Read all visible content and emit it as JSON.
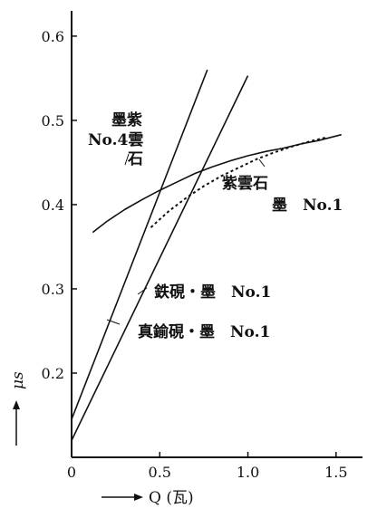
{
  "chart_data": {
    "type": "line",
    "title": "",
    "xlabel": "Q (瓦)",
    "ylabel": "μs",
    "xlim": [
      0,
      1.65
    ],
    "ylim": [
      0.1,
      0.63
    ],
    "grid": false,
    "x_ticks": [
      "0",
      "0.5",
      "1.0",
      "1.5"
    ],
    "y_ticks": [
      "0.2",
      "0.3",
      "0.4",
      "0.5",
      "0.6"
    ],
    "series": [
      {
        "style": "solid",
        "x": [
          0.0,
          0.77
        ],
        "y": [
          0.145,
          0.56
        ]
      },
      {
        "style": "solid",
        "x": [
          0.0,
          1.0
        ],
        "y": [
          0.12,
          0.553
        ]
      },
      {
        "style": "solid",
        "x": [
          0.12,
          0.2,
          0.3,
          0.4,
          0.5,
          0.6,
          0.7,
          0.8,
          0.9,
          1.0,
          1.1,
          1.2,
          1.3,
          1.4,
          1.53
        ],
        "y": [
          0.367,
          0.38,
          0.394,
          0.406,
          0.417,
          0.427,
          0.437,
          0.445,
          0.452,
          0.458,
          0.463,
          0.467,
          0.472,
          0.476,
          0.483
        ]
      },
      {
        "style": "dashed",
        "x": [
          0.45,
          0.55,
          0.65,
          0.75,
          0.85,
          0.95,
          1.05,
          1.15,
          1.25,
          1.35,
          1.45
        ],
        "y": [
          0.373,
          0.392,
          0.408,
          0.422,
          0.434,
          0.444,
          0.454,
          0.462,
          0.469,
          0.475,
          0.48
        ]
      }
    ],
    "annotations": [
      {
        "lines": [
          "墨紫",
          "No.4雲",
          "石"
        ]
      },
      {
        "lines": [
          "紫雲石"
        ]
      },
      {
        "lines": [
          "墨　No.1"
        ]
      },
      {
        "lines": [
          "鉄硯・墨　No.1"
        ]
      },
      {
        "lines": [
          "真鍮硯・墨　No.1"
        ]
      }
    ]
  }
}
